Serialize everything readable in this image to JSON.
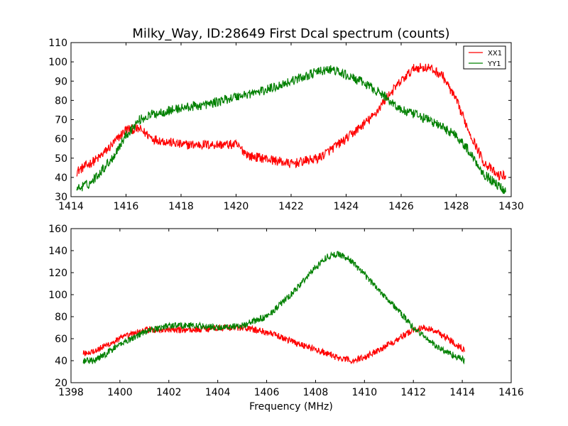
{
  "chart_data": [
    {
      "type": "line",
      "title": "Milky_Way, ID:28649 First Dcal spectrum (counts)",
      "xlabel": "",
      "ylabel": "",
      "xlim": [
        1414,
        1430
      ],
      "ylim": [
        30,
        110
      ],
      "xticks": [
        1414,
        1416,
        1418,
        1420,
        1422,
        1424,
        1426,
        1428,
        1430
      ],
      "yticks": [
        30,
        40,
        50,
        60,
        70,
        80,
        90,
        100,
        110
      ],
      "grid": false,
      "legend": "top-right",
      "x_range": [
        1414.2,
        1429.8
      ],
      "series": [
        {
          "name": "XX1",
          "color": "#ff0000",
          "x": [
            1414.2,
            1415.0,
            1415.5,
            1416.0,
            1416.5,
            1417.0,
            1418.0,
            1419.0,
            1420.0,
            1420.5,
            1421.0,
            1422.0,
            1423.0,
            1424.0,
            1425.0,
            1425.5,
            1426.0,
            1426.5,
            1427.0,
            1427.5,
            1428.0,
            1428.5,
            1429.0,
            1429.5,
            1429.8
          ],
          "values": [
            43,
            50,
            57,
            65,
            65,
            60,
            57,
            57,
            57,
            51,
            50,
            47,
            50,
            60,
            72,
            82,
            90,
            97,
            97,
            93,
            80,
            63,
            48,
            41,
            41
          ]
        },
        {
          "name": "YY1",
          "color": "#008000",
          "x": [
            1414.2,
            1414.7,
            1415.5,
            1416.0,
            1416.5,
            1417.0,
            1418.0,
            1419.0,
            1420.0,
            1421.0,
            1422.0,
            1423.0,
            1423.5,
            1424.0,
            1424.5,
            1425.0,
            1425.5,
            1426.0,
            1427.0,
            1428.0,
            1428.5,
            1429.0,
            1429.5,
            1429.8
          ],
          "values": [
            34,
            37,
            50,
            62,
            70,
            73,
            76,
            78,
            82,
            85,
            90,
            95,
            96,
            93,
            90,
            86,
            81,
            75,
            70,
            62,
            53,
            42,
            36,
            33
          ]
        }
      ]
    },
    {
      "type": "line",
      "title": "",
      "xlabel": "Frequency (MHz)",
      "ylabel": "",
      "xlim": [
        1398,
        1416
      ],
      "ylim": [
        20,
        160
      ],
      "xticks": [
        1398,
        1400,
        1402,
        1404,
        1406,
        1408,
        1410,
        1412,
        1414,
        1416
      ],
      "yticks": [
        20,
        40,
        60,
        80,
        100,
        120,
        140,
        160
      ],
      "grid": false,
      "x_range": [
        1398.5,
        1414.1
      ],
      "series": [
        {
          "name": "XX1",
          "color": "#ff0000",
          "x": [
            1398.5,
            1399.0,
            1400.0,
            1401.0,
            1402.0,
            1403.0,
            1404.0,
            1405.0,
            1406.0,
            1407.0,
            1408.0,
            1409.0,
            1409.5,
            1410.0,
            1411.0,
            1412.0,
            1412.5,
            1413.0,
            1414.1
          ],
          "values": [
            47,
            49,
            60,
            68,
            68,
            68,
            70,
            70,
            66,
            58,
            50,
            42,
            40,
            43,
            55,
            68,
            70,
            66,
            50
          ]
        },
        {
          "name": "YY1",
          "color": "#008000",
          "x": [
            1398.5,
            1399.0,
            1400.0,
            1401.0,
            1402.0,
            1403.0,
            1404.0,
            1405.0,
            1406.0,
            1407.0,
            1408.0,
            1408.5,
            1409.0,
            1409.5,
            1410.0,
            1411.0,
            1412.0,
            1413.0,
            1414.1
          ],
          "values": [
            40,
            40,
            55,
            66,
            72,
            72,
            70,
            72,
            80,
            100,
            125,
            135,
            137,
            130,
            118,
            95,
            70,
            52,
            40
          ]
        }
      ]
    }
  ]
}
